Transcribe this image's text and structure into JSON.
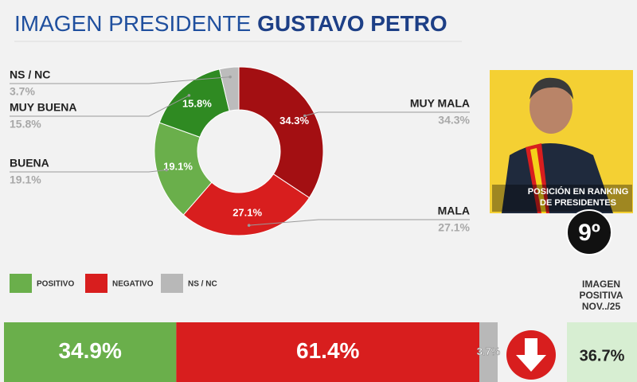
{
  "header": {
    "title": "IMAGEN PRESIDENTE",
    "name": "GUSTAVO PETRO"
  },
  "chart_data": [
    {
      "type": "pie",
      "donut": true,
      "categories": [
        "MUY MALA",
        "MALA",
        "BUENA",
        "MUY BUENA",
        "NS / NC"
      ],
      "values": [
        34.3,
        27.1,
        19.1,
        15.8,
        3.7
      ],
      "value_labels": [
        "34.3%",
        "27.1%",
        "19.1%",
        "15.8%",
        "3.7%"
      ],
      "colors": [
        "#a30f12",
        "#d81e1e",
        "#6aaf4b",
        "#2f8a22",
        "#bcbcbc"
      ]
    },
    {
      "type": "bar",
      "orientation": "horizontal",
      "stacked": true,
      "xlim": [
        0,
        100
      ],
      "legend": "bottom-left",
      "series": [
        {
          "name": "POSITIVO",
          "color": "#6aaf4b",
          "values": [
            34.9
          ],
          "value_labels": [
            "34.9%"
          ]
        },
        {
          "name": "NEGATIVO",
          "color": "#d81e1e",
          "values": [
            61.4
          ],
          "value_labels": [
            "61.4%"
          ]
        },
        {
          "name": "NS / NC",
          "color": "#b8b8b8",
          "values": [
            3.7
          ],
          "value_labels": [
            "3.7%"
          ]
        }
      ]
    }
  ],
  "ranking": {
    "caption": [
      "POSICIÓN EN RANKING",
      "DE PRESIDENTES"
    ],
    "position": "9º"
  },
  "comparison": {
    "label": [
      "IMAGEN",
      "POSITIVA",
      "NOV../25"
    ],
    "value": "36.7%"
  }
}
